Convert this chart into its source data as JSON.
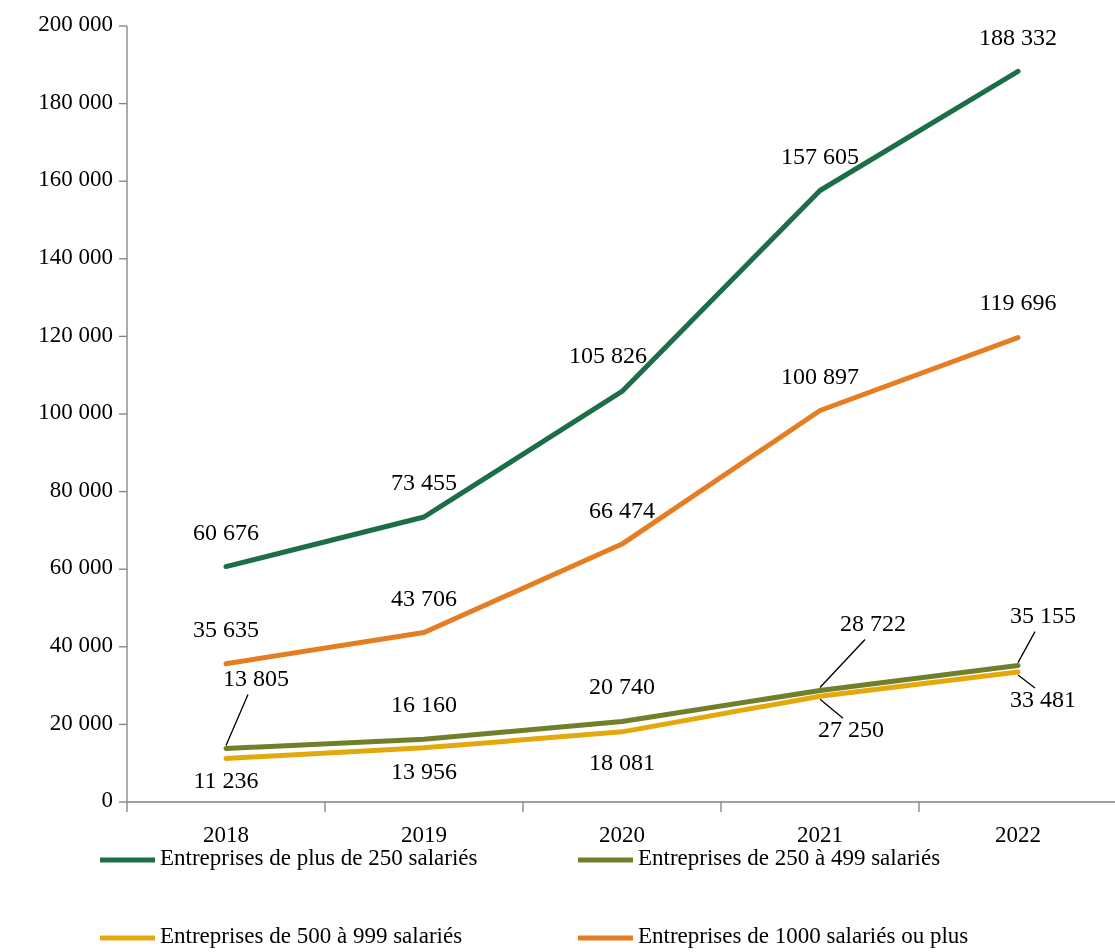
{
  "chart_data": {
    "type": "line",
    "categories": [
      "2018",
      "2019",
      "2020",
      "2021",
      "2022"
    ],
    "ylim": [
      0,
      200000
    ],
    "yticks": [
      {
        "value": 0,
        "label": "0"
      },
      {
        "value": 20000,
        "label": "20 000"
      },
      {
        "value": 40000,
        "label": "40 000"
      },
      {
        "value": 60000,
        "label": "60 000"
      },
      {
        "value": 80000,
        "label": "80 000"
      },
      {
        "value": 100000,
        "label": "100 000"
      },
      {
        "value": 120000,
        "label": "120 000"
      },
      {
        "value": 140000,
        "label": "140 000"
      },
      {
        "value": 160000,
        "label": "160 000"
      },
      {
        "value": 180000,
        "label": "180 000"
      },
      {
        "value": 200000,
        "label": "200 000"
      }
    ],
    "series": [
      {
        "name": "Entreprises de plus de 250 salariés",
        "color": "#1b6e46",
        "values": [
          60676,
          73455,
          105826,
          157605,
          188332
        ],
        "value_labels": [
          "60 676",
          "73 455",
          "105 826",
          "157 605",
          "188 332"
        ]
      },
      {
        "name": "Entreprises de 250 à 499 salariés",
        "color": "#6f7f2a",
        "values": [
          13805,
          16160,
          20740,
          28722,
          35155
        ],
        "value_labels": [
          "13 805",
          "16 160",
          "20 740",
          "28 722",
          "35 155"
        ]
      },
      {
        "name": "Entreprises de 500 à 999 salariés",
        "color": "#e3a90c",
        "values": [
          11236,
          13956,
          18081,
          27250,
          33481
        ],
        "value_labels": [
          "11 236",
          "13 956",
          "18 081",
          "27 250",
          "33 481"
        ]
      },
      {
        "name": "Entreprises de 1000 salariés ou plus",
        "color": "#e57e22",
        "values": [
          35635,
          43706,
          66474,
          100897,
          119696
        ],
        "value_labels": [
          "35 635",
          "43 706",
          "66 474",
          "100 897",
          "119 696"
        ]
      }
    ],
    "legend": "bottom",
    "line_style": "solid",
    "grid": false
  }
}
